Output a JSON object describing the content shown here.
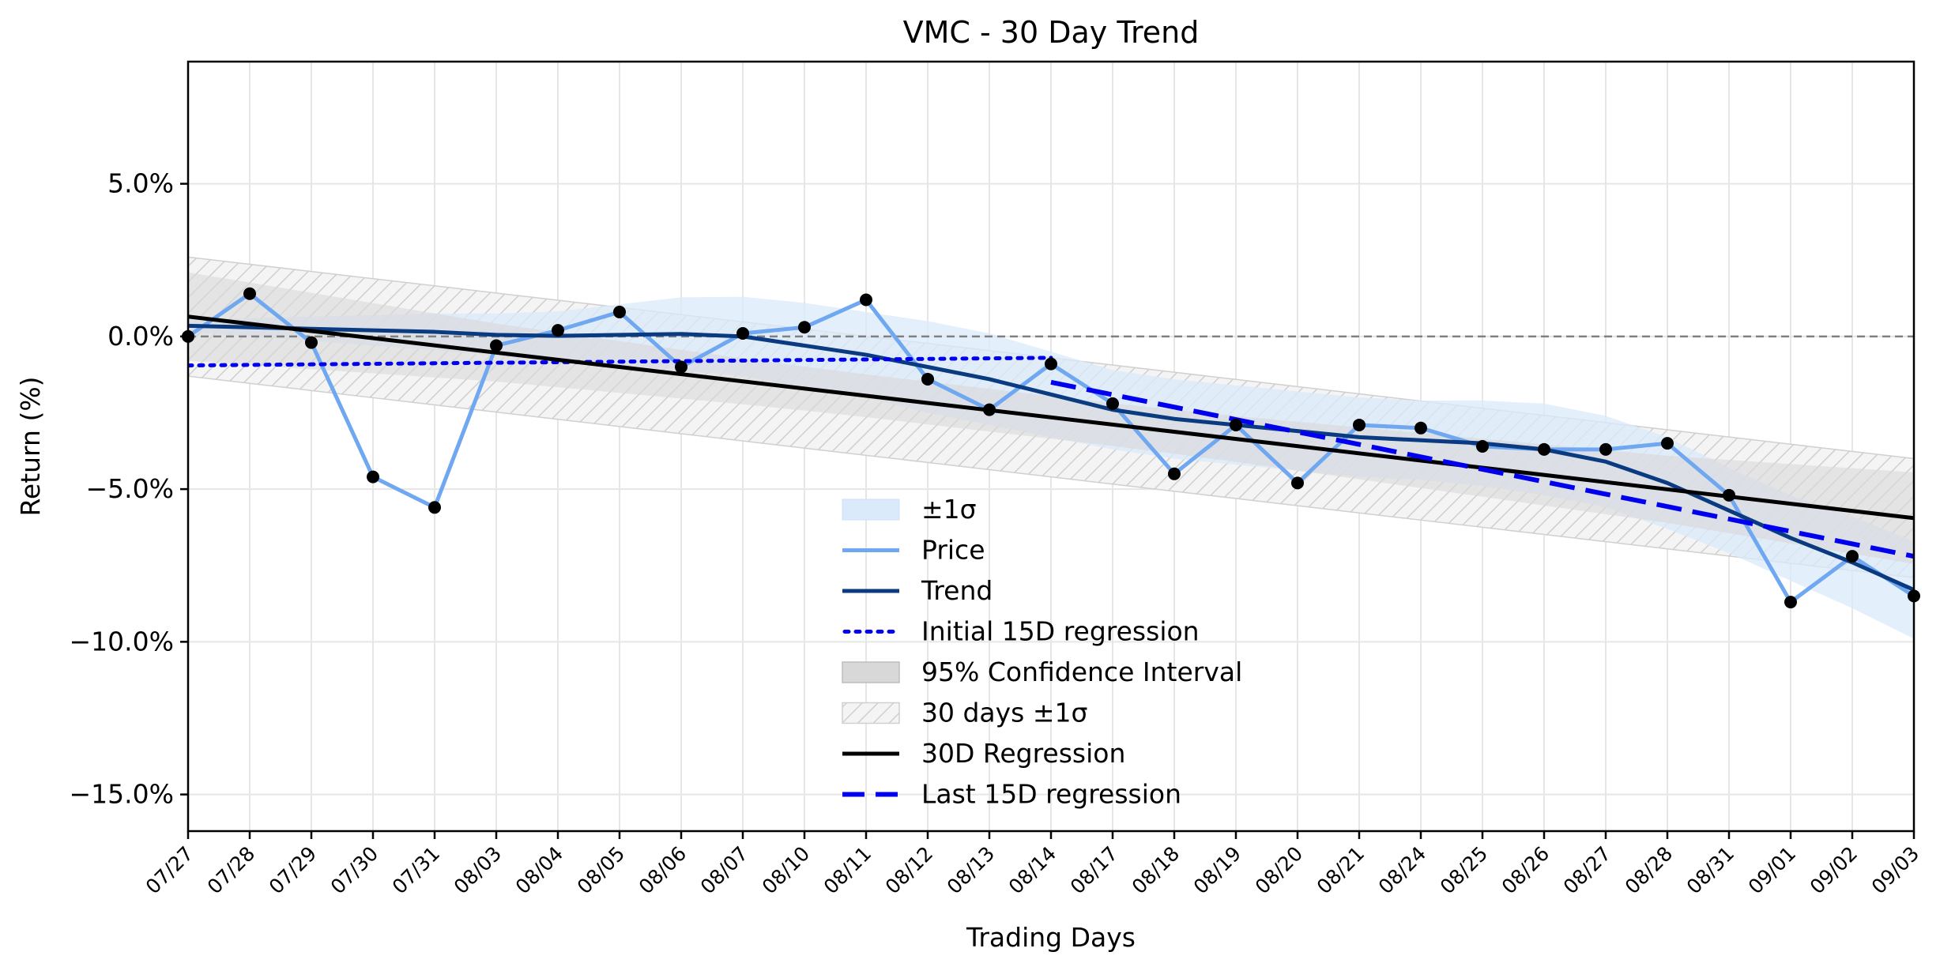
{
  "chart_data": {
    "type": "line",
    "title": "VMC - 30 Day Trend",
    "xlabel": "Trading Days",
    "ylabel": "Return (%)",
    "categories": [
      "07/27",
      "07/28",
      "07/29",
      "07/30",
      "07/31",
      "08/03",
      "08/04",
      "08/05",
      "08/06",
      "08/07",
      "08/10",
      "08/11",
      "08/12",
      "08/13",
      "08/14",
      "08/17",
      "08/18",
      "08/19",
      "08/20",
      "08/21",
      "08/24",
      "08/25",
      "08/26",
      "08/27",
      "08/28",
      "08/31",
      "09/01",
      "09/02",
      "09/03"
    ],
    "ylim": [
      -16.2,
      9.0
    ],
    "yticks": [
      5.0,
      0.0,
      -5.0,
      -10.0,
      -15.0
    ],
    "ytick_labels": [
      "5.0%",
      "0.0%",
      "−5.0%",
      "−10.0%",
      "−15.0%"
    ],
    "grid": true,
    "legend_placement": "lower center",
    "zero_line": 0.0,
    "series": [
      {
        "name": "Price",
        "color": "#6fa8f0",
        "values": [
          0.0,
          1.4,
          -0.2,
          -4.6,
          -5.6,
          -0.3,
          0.2,
          0.8,
          -1.0,
          0.1,
          0.3,
          1.2,
          -1.4,
          -2.4,
          -0.9,
          -2.2,
          -4.5,
          -2.9,
          -4.8,
          -2.9,
          -3.0,
          -3.6,
          -3.7,
          -3.7,
          -3.5,
          -5.2,
          -8.7,
          -7.2,
          -8.5
        ]
      },
      {
        "name": "Trend",
        "color": "#0a3a80",
        "values": [
          0.35,
          0.3,
          0.25,
          0.2,
          0.15,
          0.05,
          0.02,
          0.05,
          0.08,
          0.0,
          -0.3,
          -0.6,
          -1.0,
          -1.4,
          -1.9,
          -2.4,
          -2.7,
          -2.9,
          -3.1,
          -3.3,
          -3.4,
          -3.5,
          -3.7,
          -4.1,
          -4.8,
          -5.7,
          -6.6,
          -7.4,
          -8.3
        ]
      },
      {
        "name": "Initial 15D regression",
        "color": "#0000ee",
        "x_range": [
          0,
          14
        ],
        "y_range": [
          -0.95,
          -0.7
        ]
      },
      {
        "name": "30D Regression",
        "color": "#000000",
        "x_range": [
          0,
          28
        ],
        "y_range": [
          0.65,
          -5.95
        ]
      },
      {
        "name": "Last 15D regression",
        "color": "#0000ee",
        "x_range": [
          14,
          28
        ],
        "y_range": [
          -1.5,
          -7.2
        ]
      }
    ],
    "bands": [
      {
        "name": "±1σ",
        "color": "#dbeafb",
        "sigma": [
          0.2,
          0.3,
          0.4,
          0.5,
          0.6,
          0.7,
          0.8,
          1.0,
          1.2,
          1.3,
          1.4,
          1.4,
          1.5,
          1.5,
          1.4,
          1.3,
          1.3,
          1.3,
          1.3,
          1.3,
          1.3,
          1.4,
          1.5,
          1.5,
          1.5,
          1.4,
          1.4,
          1.5,
          1.6
        ]
      },
      {
        "name": "95% Confidence Interval",
        "color": "#d8d8d8",
        "half_width": [
          1.45,
          1.35,
          1.25,
          1.15,
          1.05,
          0.95,
          0.9,
          0.85,
          0.8,
          0.75,
          0.72,
          0.7,
          0.7,
          0.7,
          0.7,
          0.7,
          0.72,
          0.75,
          0.8,
          0.85,
          0.9,
          0.95,
          1.0,
          1.05,
          1.1,
          1.2,
          1.3,
          1.4,
          1.5
        ]
      },
      {
        "name": "30 days ±1σ",
        "color": "#c8c8c8",
        "half_width": 1.95
      }
    ],
    "markers": {
      "color": "#000000",
      "on_series": "Price"
    }
  },
  "legend": {
    "items": [
      {
        "label": "±1σ",
        "kind": "fill-blue"
      },
      {
        "label": "Price",
        "kind": "line-price"
      },
      {
        "label": "Trend",
        "kind": "line-trend"
      },
      {
        "label": "Initial 15D regression",
        "kind": "line-dotted"
      },
      {
        "label": "95% Confidence Interval",
        "kind": "fill-grey"
      },
      {
        "label": "30 days ±1σ",
        "kind": "fill-hatch"
      },
      {
        "label": "30D Regression",
        "kind": "line-black"
      },
      {
        "label": "Last 15D regression",
        "kind": "line-dashed"
      }
    ]
  }
}
